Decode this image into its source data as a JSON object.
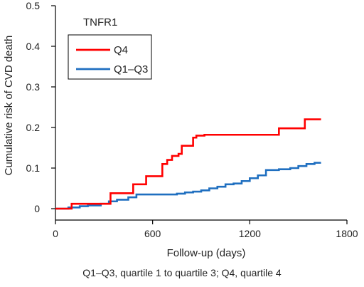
{
  "chart_data": {
    "type": "line",
    "title": "TNFR1",
    "xlabel": "Follow-up (days)",
    "ylabel": "Cumulative risk of CVD death",
    "xlim": [
      0,
      1800
    ],
    "ylim": [
      0,
      0.5
    ],
    "xticks": [
      0,
      600,
      1200,
      1800
    ],
    "yticks": [
      0,
      0.1,
      0.2,
      0.3,
      0.4,
      0.5
    ],
    "xtick_labels": [
      "0",
      "600",
      "1200",
      "1800"
    ],
    "ytick_labels": [
      "0",
      "0.1",
      "0.2",
      "0.3",
      "0.4",
      "0.5"
    ],
    "step": true,
    "grid": false,
    "legend": "top-left",
    "series": [
      {
        "name": "Q4",
        "color": "#ff0000",
        "x": [
          0,
          100,
          330,
          340,
          430,
          480,
          560,
          620,
          660,
          690,
          720,
          760,
          780,
          820,
          850,
          870,
          920,
          1380,
          1540,
          1640
        ],
        "y": [
          0,
          0.012,
          0.012,
          0.038,
          0.038,
          0.06,
          0.08,
          0.08,
          0.11,
          0.12,
          0.13,
          0.135,
          0.155,
          0.155,
          0.175,
          0.18,
          0.182,
          0.198,
          0.22,
          0.22
        ]
      },
      {
        "name": "Q1–Q3",
        "color": "#1f6fc0",
        "x": [
          0,
          80,
          150,
          200,
          280,
          330,
          380,
          450,
          500,
          700,
          750,
          800,
          850,
          900,
          950,
          1000,
          1050,
          1100,
          1150,
          1200,
          1250,
          1300,
          1380,
          1450,
          1500,
          1550,
          1600,
          1640
        ],
        "y": [
          0,
          0.003,
          0.006,
          0.008,
          0.012,
          0.018,
          0.022,
          0.028,
          0.035,
          0.035,
          0.037,
          0.04,
          0.042,
          0.045,
          0.05,
          0.054,
          0.06,
          0.062,
          0.068,
          0.075,
          0.082,
          0.095,
          0.097,
          0.1,
          0.105,
          0.11,
          0.113,
          0.113
        ]
      }
    ],
    "caption": "Q1–Q3, quartile 1 to quartile 3; Q4, quartile 4"
  }
}
